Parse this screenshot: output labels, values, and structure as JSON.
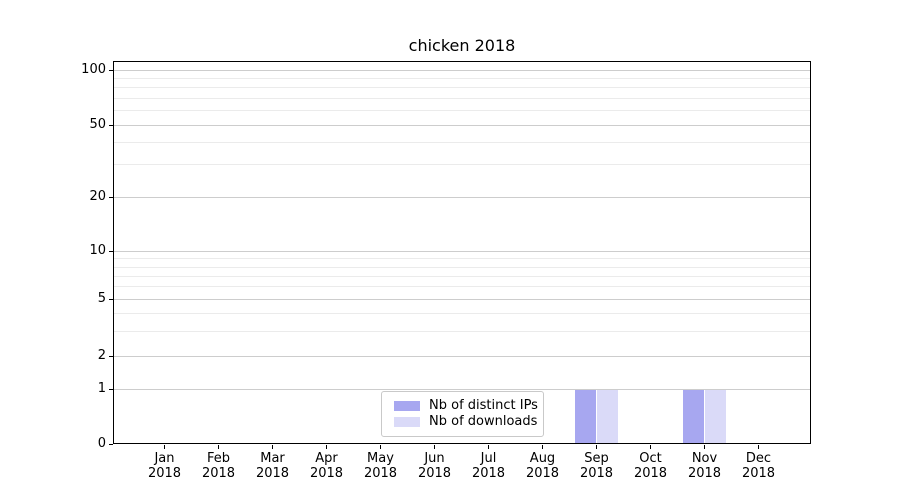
{
  "chart_data": {
    "type": "bar",
    "title": "chicken 2018",
    "categories": [
      "Jan 2018",
      "Feb 2018",
      "Mar 2018",
      "Apr 2018",
      "May 2018",
      "Jun 2018",
      "Jul 2018",
      "Aug 2018",
      "Sep 2018",
      "Oct 2018",
      "Nov 2018",
      "Dec 2018"
    ],
    "series": [
      {
        "name": "Nb of distinct IPs",
        "color": "#a7a7f0",
        "values": [
          0,
          0,
          0,
          0,
          0,
          0,
          0,
          0,
          1,
          0,
          1,
          0
        ]
      },
      {
        "name": "Nb of downloads",
        "color": "#dadaf8",
        "values": [
          0,
          0,
          0,
          0,
          0,
          0,
          0,
          0,
          1,
          0,
          1,
          0
        ]
      }
    ],
    "yticks": [
      100,
      50,
      20,
      10,
      5,
      2,
      1,
      0
    ],
    "ylim": [
      0,
      112
    ],
    "yscale": "symlog",
    "xlabel": "",
    "ylabel": "",
    "grid": "horizontal major and minor gridlines",
    "legend": {
      "position": "lower center inside plot",
      "entries": [
        "Nb of distinct IPs",
        "Nb of downloads"
      ]
    }
  }
}
